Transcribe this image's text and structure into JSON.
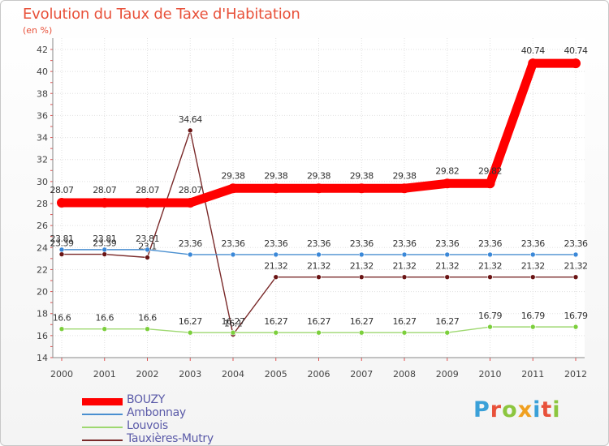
{
  "chart_data": {
    "type": "line",
    "title": "Evolution du Taux de Taxe d'Habitation",
    "ylabel": "(en %)",
    "xlabel": "",
    "ylim": [
      14,
      42
    ],
    "yticks": [
      14,
      16,
      18,
      20,
      22,
      24,
      26,
      28,
      30,
      32,
      34,
      36,
      38,
      40,
      42
    ],
    "grid": true,
    "legend_position": "bottom-left",
    "categories": [
      "2000",
      "2001",
      "2002",
      "2003",
      "2004",
      "2005",
      "2006",
      "2007",
      "2008",
      "2009",
      "2010",
      "2011",
      "2012"
    ],
    "series": [
      {
        "name": "BOUZY",
        "color": "#ff0000",
        "emphasis": "bold",
        "values": [
          28.07,
          28.07,
          28.07,
          28.07,
          29.38,
          29.38,
          29.38,
          29.38,
          29.38,
          29.82,
          29.82,
          40.74,
          40.74
        ],
        "labels": [
          "28.07",
          "28.07",
          "28.07",
          "28.07",
          "29.38",
          "29.38",
          "29.38",
          "29.38",
          "29.38",
          "29.82",
          "29.82",
          "40.74",
          "40.74"
        ]
      },
      {
        "name": "Ambonnay",
        "color": "#4a8fd0",
        "marker": "#3a88d8",
        "values": [
          23.81,
          23.81,
          23.81,
          23.36,
          23.36,
          23.36,
          23.36,
          23.36,
          23.36,
          23.36,
          23.36,
          23.36,
          23.36
        ],
        "labels": [
          "23.81",
          "23.81",
          "23.81",
          "23.36",
          "23.36",
          "23.36",
          "23.36",
          "23.36",
          "23.36",
          "23.36",
          "23.36",
          "23.36",
          "23.36"
        ]
      },
      {
        "name": "Louvois",
        "color": "#9ed870",
        "marker": "#7ccf3c",
        "values": [
          16.6,
          16.6,
          16.6,
          16.27,
          16.27,
          16.27,
          16.27,
          16.27,
          16.27,
          16.27,
          16.79,
          16.79,
          16.79
        ],
        "labels": [
          "16.6",
          "16.6",
          "16.6",
          "16.27",
          "16.27",
          "16.27",
          "16.27",
          "16.27",
          "16.27",
          "16.27",
          "16.79",
          "16.79",
          "16.79"
        ]
      },
      {
        "name": "Tauxières-Mutry",
        "color": "#7a2a2a",
        "marker": "#6a1414",
        "values": [
          23.39,
          23.39,
          23.1,
          34.64,
          16.1,
          21.32,
          21.32,
          21.32,
          21.32,
          21.32,
          21.32,
          21.32,
          21.32
        ],
        "labels": [
          "23.39",
          "23.39",
          "23.1",
          "34.64",
          "16.1",
          "21.32",
          "21.32",
          "21.32",
          "21.32",
          "21.32",
          "21.32",
          "21.32",
          "21.32"
        ]
      }
    ]
  },
  "logo": {
    "text": "Proxiti",
    "letters": [
      {
        "ch": "P",
        "color": "#3aa0d8"
      },
      {
        "ch": "r",
        "color": "#e8513a"
      },
      {
        "ch": "o",
        "color": "#8cc63f"
      },
      {
        "ch": "x",
        "color": "#f0a020"
      },
      {
        "ch": "i",
        "color": "#3aa0d8"
      },
      {
        "ch": "t",
        "color": "#e8513a"
      },
      {
        "ch": "i",
        "color": "#8cc63f"
      }
    ]
  },
  "colors": {
    "title": "#e8513a",
    "axis_text": "#444444",
    "grid": "#e0e0e0",
    "legend_text": "#5a5aa8"
  }
}
